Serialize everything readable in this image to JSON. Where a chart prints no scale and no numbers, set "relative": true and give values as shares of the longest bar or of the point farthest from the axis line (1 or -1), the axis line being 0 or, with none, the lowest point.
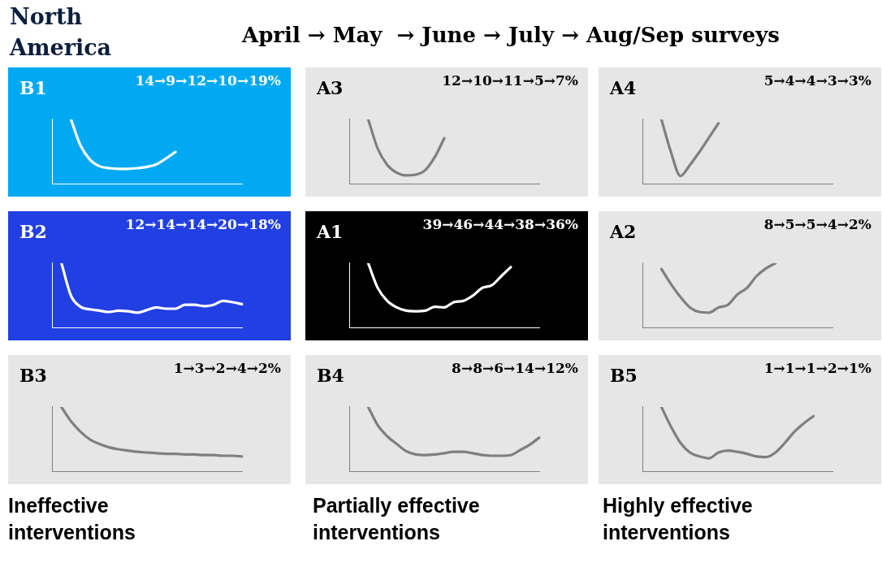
{
  "chart_data": [
    {
      "type": "other",
      "title": "North America",
      "subtitle": "April → May  → June → July → Aug/Sep surveys",
      "annotations": [
        "Ineffective interventions",
        "Partially effective interventions",
        "Highly effective interventions"
      ]
    },
    {
      "type": "line",
      "title": "B1",
      "subtitle": "14→9→12→10→19%",
      "relative": true,
      "marker": "none",
      "categories": [
        null,
        null,
        null,
        null,
        null,
        null,
        null,
        null,
        null,
        null,
        null,
        null,
        null,
        null,
        null,
        null,
        null,
        null,
        null,
        null,
        null
      ],
      "series": [
        {
          "color": "#ffffff",
          "values": [
            null,
            null,
            1.0,
            0.6,
            0.38,
            0.28,
            0.25,
            0.24,
            0.24,
            0.25,
            0.27,
            0.31,
            0.4,
            0.5,
            null,
            null,
            null,
            null,
            null,
            null,
            null
          ]
        }
      ]
    },
    {
      "type": "line",
      "title": "A3",
      "subtitle": "12→10→11→5→7%",
      "relative": true,
      "marker": "none",
      "categories": [
        null,
        null,
        null,
        null,
        null,
        null,
        null,
        null,
        null,
        null,
        null,
        null,
        null,
        null,
        null,
        null,
        null,
        null,
        null,
        null,
        null
      ],
      "series": [
        {
          "color": "#7f7f7f",
          "values": [
            null,
            null,
            1.0,
            0.55,
            0.3,
            0.18,
            0.14,
            0.15,
            0.22,
            0.42,
            0.71,
            null,
            null,
            null,
            null,
            null,
            null,
            null,
            null,
            null,
            null
          ]
        }
      ]
    },
    {
      "type": "line",
      "title": "A4",
      "subtitle": "5→4→4→3→3%",
      "relative": true,
      "marker": "none",
      "categories": [
        null,
        null,
        null,
        null,
        null,
        null,
        null,
        null,
        null,
        null,
        null,
        null,
        null,
        null,
        null,
        null,
        null,
        null,
        null,
        null,
        null
      ],
      "series": [
        {
          "color": "#7f7f7f",
          "values": [
            null,
            null,
            1.0,
            0.5,
            0.13,
            0.3,
            0.5,
            0.72,
            0.94,
            null,
            null,
            null,
            null,
            null,
            null,
            null,
            null,
            null,
            null,
            null,
            null
          ]
        }
      ]
    },
    {
      "type": "line",
      "title": "B2",
      "subtitle": "12→14→14→20→18%",
      "relative": true,
      "marker": "none",
      "categories": [
        null,
        null,
        null,
        null,
        null,
        null,
        null,
        null,
        null,
        null,
        null,
        null,
        null,
        null,
        null,
        null,
        null,
        null,
        null,
        null,
        null
      ],
      "series": [
        {
          "color": "#ffffff",
          "values": [
            null,
            1.0,
            0.5,
            0.33,
            0.29,
            0.27,
            0.25,
            0.27,
            0.26,
            0.24,
            0.28,
            0.32,
            0.3,
            0.3,
            0.36,
            0.36,
            0.34,
            0.36,
            0.42,
            0.4,
            0.37
          ]
        }
      ]
    },
    {
      "type": "line",
      "title": "A1",
      "subtitle": "39→46→44→38→36%",
      "relative": true,
      "marker": "none",
      "categories": [
        null,
        null,
        null,
        null,
        null,
        null,
        null,
        null,
        null,
        null,
        null,
        null,
        null,
        null,
        null,
        null,
        null,
        null,
        null,
        null,
        null
      ],
      "series": [
        {
          "color": "#ffffff",
          "values": [
            null,
            null,
            1.0,
            0.62,
            0.42,
            0.32,
            0.27,
            0.26,
            0.27,
            0.33,
            0.32,
            0.4,
            0.42,
            0.5,
            0.62,
            0.66,
            0.8,
            0.94,
            null,
            null,
            null
          ]
        }
      ]
    },
    {
      "type": "line",
      "title": "A2",
      "subtitle": "8→5→5→4→2%",
      "relative": true,
      "marker": "none",
      "categories": [
        null,
        null,
        null,
        null,
        null,
        null,
        null,
        null,
        null,
        null,
        null,
        null,
        null,
        null,
        null,
        null,
        null,
        null,
        null,
        null,
        null
      ],
      "series": [
        {
          "color": "#7f7f7f",
          "values": [
            null,
            null,
            0.91,
            0.68,
            0.48,
            0.32,
            0.25,
            0.24,
            0.32,
            0.36,
            0.52,
            0.62,
            0.8,
            0.92,
            1.0,
            null,
            null,
            null,
            null,
            null,
            null
          ]
        }
      ]
    },
    {
      "type": "line",
      "title": "B3",
      "subtitle": "1→3→2→4→2%",
      "relative": true,
      "marker": "none",
      "categories": [
        null,
        null,
        null,
        null,
        null,
        null,
        null,
        null,
        null,
        null,
        null,
        null,
        null,
        null,
        null,
        null,
        null,
        null,
        null,
        null,
        null
      ],
      "series": [
        {
          "color": "#7f7f7f",
          "values": [
            null,
            1.0,
            0.78,
            0.62,
            0.5,
            0.43,
            0.38,
            0.35,
            0.33,
            0.31,
            0.3,
            0.29,
            0.28,
            0.28,
            0.27,
            0.27,
            0.26,
            0.26,
            0.25,
            0.25,
            0.24
          ]
        }
      ]
    },
    {
      "type": "line",
      "title": "B4",
      "subtitle": "8→8→6→14→12%",
      "relative": true,
      "marker": "none",
      "categories": [
        null,
        null,
        null,
        null,
        null,
        null,
        null,
        null,
        null,
        null,
        null,
        null,
        null,
        null,
        null,
        null,
        null,
        null,
        null,
        null,
        null
      ],
      "series": [
        {
          "color": "#7f7f7f",
          "values": [
            null,
            null,
            1.0,
            0.72,
            0.55,
            0.43,
            0.32,
            0.27,
            0.26,
            0.27,
            0.29,
            0.31,
            0.31,
            0.29,
            0.26,
            0.25,
            0.25,
            0.26,
            0.34,
            0.42,
            0.53
          ]
        }
      ]
    },
    {
      "type": "line",
      "title": "B5",
      "subtitle": "1→1→1→2→1%",
      "relative": true,
      "marker": "none",
      "categories": [
        null,
        null,
        null,
        null,
        null,
        null,
        null,
        null,
        null,
        null,
        null,
        null,
        null,
        null,
        null,
        null,
        null,
        null,
        null,
        null,
        null
      ],
      "series": [
        {
          "color": "#7f7f7f",
          "values": [
            null,
            null,
            1.0,
            0.7,
            0.45,
            0.3,
            0.24,
            0.21,
            0.3,
            0.33,
            0.31,
            0.28,
            0.24,
            0.23,
            0.3,
            0.45,
            0.62,
            0.75,
            0.86,
            null,
            null
          ]
        }
      ]
    }
  ]
}
